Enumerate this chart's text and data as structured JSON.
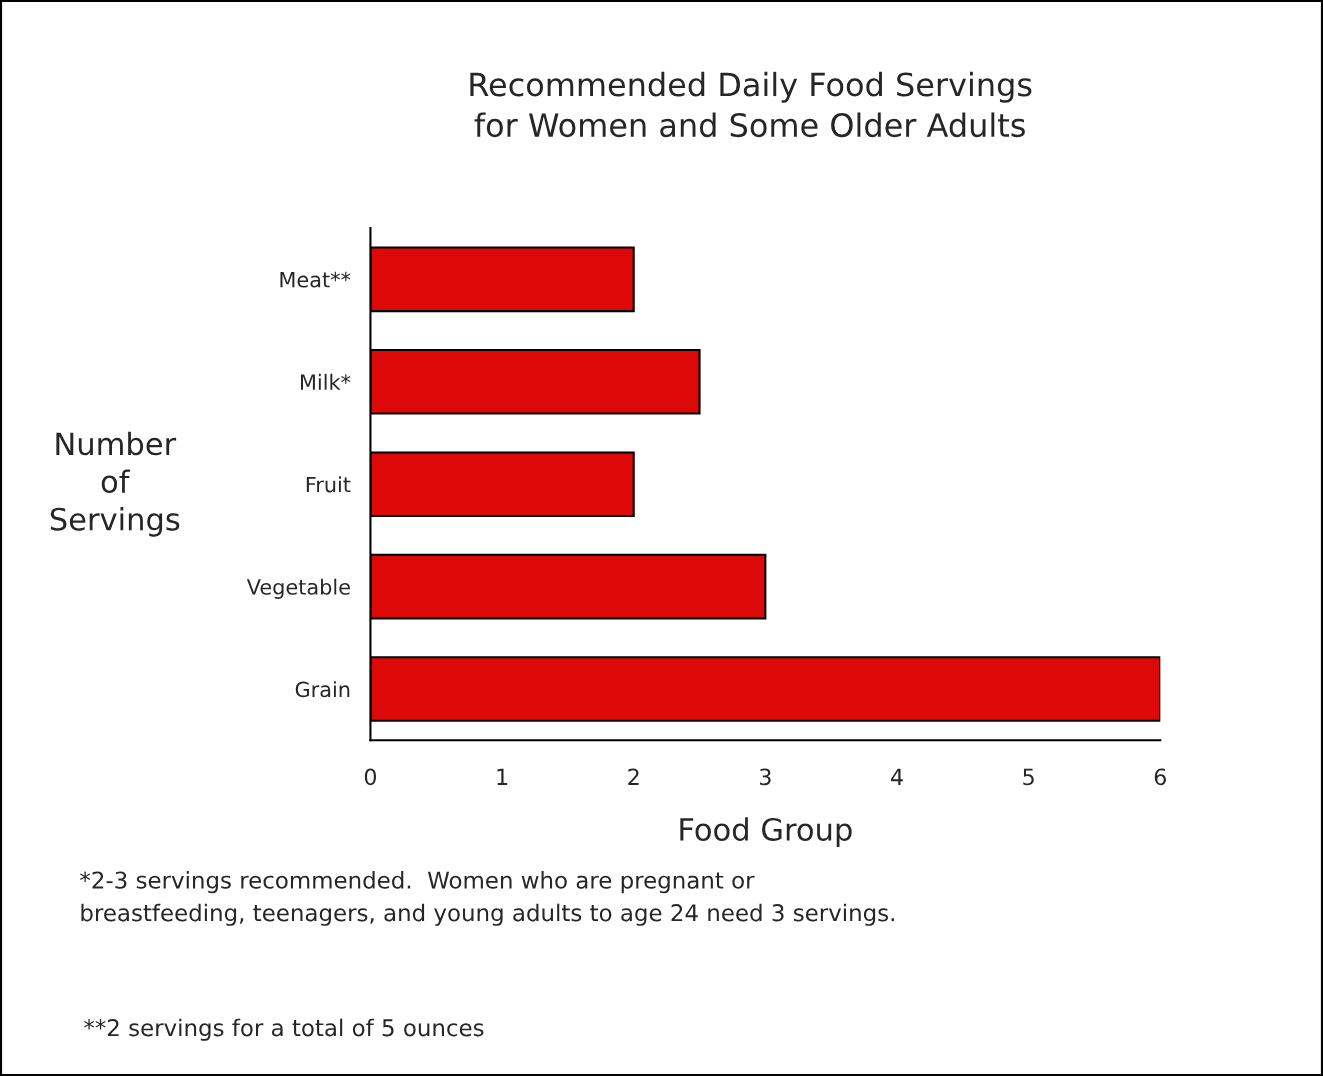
{
  "chart_data": {
    "type": "bar",
    "orientation": "horizontal",
    "title": "Recommended Daily Food Servings\nfor Women and Some Older Adults",
    "xlabel": "Food Group",
    "ylabel": "Number\nof\nServings",
    "categories": [
      "Meat**",
      "Milk*",
      "Fruit",
      "Vegetable",
      "Grain"
    ],
    "values": [
      2,
      2.5,
      2,
      3,
      6
    ],
    "color": "#dd0808",
    "xlim": [
      0,
      6
    ],
    "xticks": [
      0,
      1,
      2,
      3,
      4,
      5,
      6
    ],
    "grid": false,
    "legend": false,
    "annotations": [
      "*2-3 servings recommended.  Women who are pregnant or\nbreastfeeding, teenagers, and young adults to age 24 need 3 servings.",
      "**2 servings for a total of 5 ounces"
    ]
  }
}
